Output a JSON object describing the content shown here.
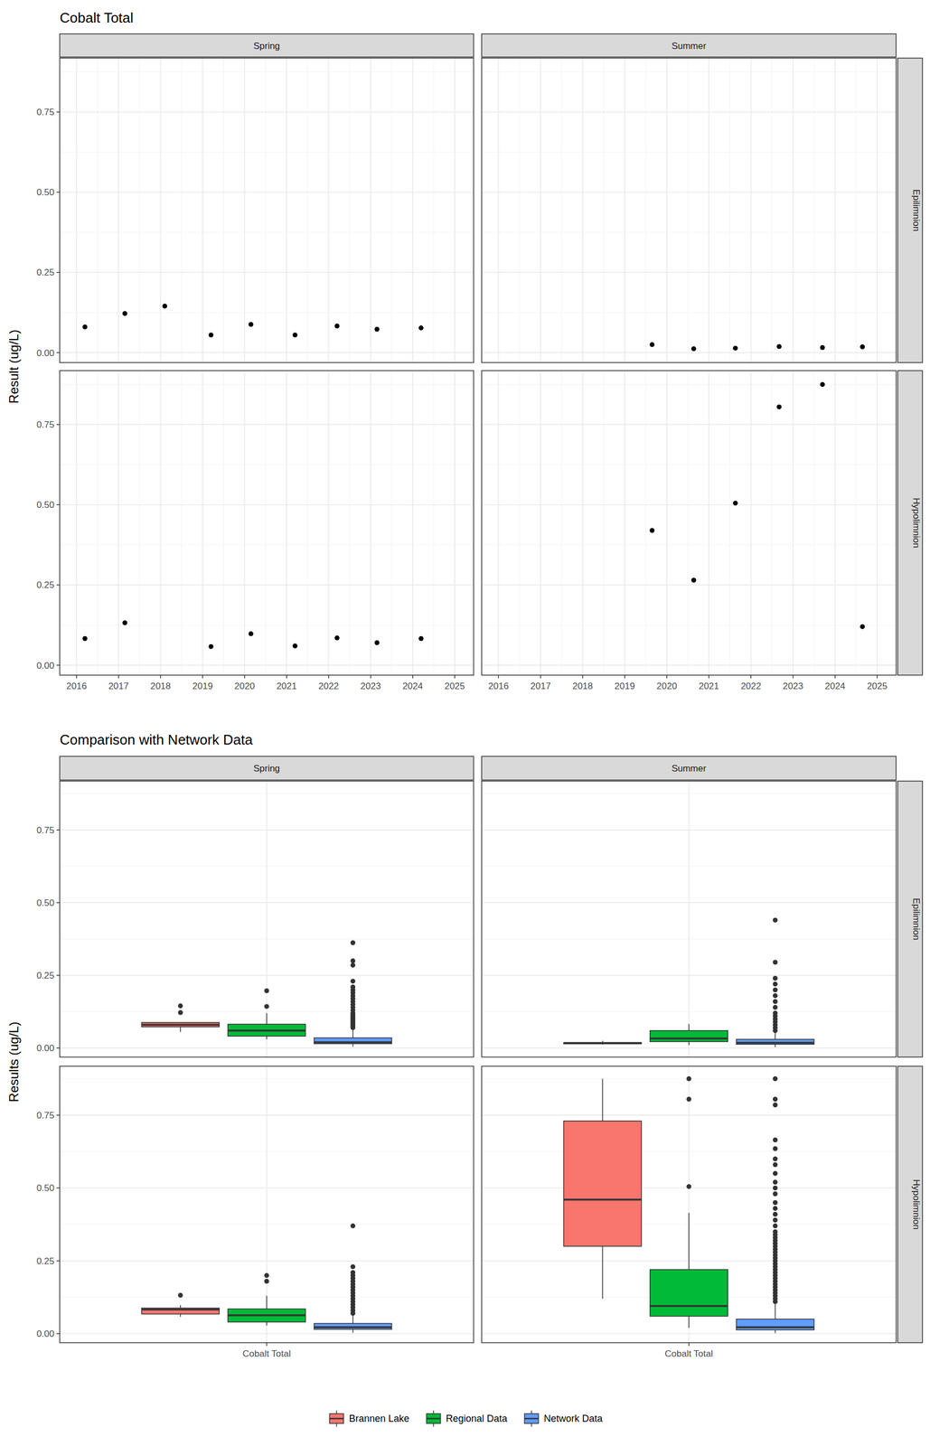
{
  "chart_data": [
    {
      "type": "scatter",
      "title": "Cobalt Total",
      "y_label": "Result (ug/L)",
      "grid": true,
      "columns": [
        "Spring",
        "Summer"
      ],
      "xlim": [
        2015.6,
        2025.45
      ],
      "xticks": [
        2016,
        2017,
        2018,
        2019,
        2020,
        2021,
        2022,
        2023,
        2024,
        2025
      ],
      "ylim": [
        -0.031,
        0.918
      ],
      "yticks": [
        {
          "value": 0,
          "label": "0.00"
        },
        0.25,
        {
          "value": 0.5,
          "label": "0.50"
        },
        0.75
      ],
      "rows": [
        {
          "label": "Epilimnion",
          "panels": [
            {
              "x": [
                2016.2,
                2017.15,
                2018.1,
                2019.2,
                2020.15,
                2021.2,
                2022.2,
                2023.15,
                2024.2
              ],
              "values": [
                0.08,
                0.122,
                0.145,
                0.055,
                0.088,
                0.055,
                0.083,
                0.073,
                0.077
              ]
            },
            {
              "x": [
                2019.65,
                2020.64,
                2021.63,
                2022.67,
                2023.7,
                2024.65
              ],
              "values": [
                0.025,
                0.012,
                0.014,
                0.019,
                0.016,
                0.018
              ]
            }
          ]
        },
        {
          "label": "Hypolimnion",
          "panels": [
            {
              "x": [
                2016.2,
                2017.15,
                2019.2,
                2020.15,
                2021.2,
                2022.2,
                2023.15,
                2024.2
              ],
              "values": [
                0.083,
                0.132,
                0.058,
                0.098,
                0.06,
                0.085,
                0.07,
                0.083
              ]
            },
            {
              "x": [
                2019.65,
                2020.64,
                2021.63,
                2022.67,
                2023.7,
                2024.65
              ],
              "values": [
                0.42,
                0.265,
                0.505,
                0.805,
                0.875,
                0.12
              ]
            }
          ]
        }
      ]
    },
    {
      "type": "box",
      "title": "Comparison with Network Data",
      "y_label": "Results (ug/L)",
      "grid": true,
      "legend": "bottom",
      "columns": [
        "Spring",
        "Summer"
      ],
      "categories": [
        "Cobalt Total"
      ],
      "ylim": [
        -0.031,
        0.918
      ],
      "yticks": [
        {
          "value": 0,
          "label": "0.00"
        },
        0.25,
        {
          "value": 0.5,
          "label": "0.50"
        },
        0.75
      ],
      "series": [
        {
          "name": "Brannen Lake",
          "color": "#F8766D"
        },
        {
          "name": "Regional Data",
          "color": "#00BA38"
        },
        {
          "name": "Network Data",
          "color": "#619CFF"
        }
      ],
      "rows": [
        {
          "label": "Epilimnion",
          "panels": [
            {
              "boxes": [
                {
                  "min": 0.055,
                  "q1": 0.073,
                  "median": 0.08,
                  "q3": 0.088,
                  "max": 0.088,
                  "outliers": [
                    0.122,
                    0.145
                  ]
                },
                {
                  "min": 0.03,
                  "q1": 0.041,
                  "median": 0.06,
                  "q3": 0.082,
                  "max": 0.12,
                  "outliers": [
                    0.143,
                    0.197
                  ]
                },
                {
                  "min": 0.005,
                  "q1": 0.015,
                  "median": 0.02,
                  "q3": 0.035,
                  "max": 0.065,
                  "outliers": [
                    0.07,
                    0.075,
                    0.08,
                    0.085,
                    0.09,
                    0.095,
                    0.1,
                    0.105,
                    0.11,
                    0.115,
                    0.12,
                    0.13,
                    0.14,
                    0.15,
                    0.16,
                    0.17,
                    0.18,
                    0.19,
                    0.2,
                    0.21,
                    0.23,
                    0.285,
                    0.3,
                    0.362
                  ]
                }
              ]
            },
            {
              "boxes": [
                {
                  "min": 0.012,
                  "q1": 0.0145,
                  "median": 0.017,
                  "q3": 0.0187,
                  "max": 0.025,
                  "outliers": []
                },
                {
                  "min": 0.01,
                  "q1": 0.022,
                  "median": 0.033,
                  "q3": 0.06,
                  "max": 0.083,
                  "outliers": []
                },
                {
                  "min": 0.003,
                  "q1": 0.013,
                  "median": 0.018,
                  "q3": 0.03,
                  "max": 0.055,
                  "outliers": [
                    0.06,
                    0.07,
                    0.08,
                    0.09,
                    0.1,
                    0.11,
                    0.12,
                    0.14,
                    0.16,
                    0.18,
                    0.2,
                    0.22,
                    0.24,
                    0.295,
                    0.44
                  ]
                }
              ]
            }
          ]
        },
        {
          "label": "Hypolimnion",
          "panels": [
            {
              "boxes": [
                {
                  "min": 0.058,
                  "q1": 0.0675,
                  "median": 0.083,
                  "q3": 0.088,
                  "max": 0.098,
                  "outliers": [
                    0.132
                  ]
                },
                {
                  "min": 0.028,
                  "q1": 0.04,
                  "median": 0.063,
                  "q3": 0.085,
                  "max": 0.13,
                  "outliers": [
                    0.18,
                    0.2
                  ]
                },
                {
                  "min": 0.003,
                  "q1": 0.015,
                  "median": 0.022,
                  "q3": 0.035,
                  "max": 0.065,
                  "outliers": [
                    0.07,
                    0.08,
                    0.09,
                    0.1,
                    0.11,
                    0.12,
                    0.13,
                    0.14,
                    0.15,
                    0.16,
                    0.17,
                    0.18,
                    0.19,
                    0.2,
                    0.21,
                    0.23,
                    0.37
                  ]
                }
              ]
            },
            {
              "boxes": [
                {
                  "min": 0.12,
                  "q1": 0.3,
                  "median": 0.46,
                  "q3": 0.73,
                  "max": 0.875,
                  "outliers": []
                },
                {
                  "min": 0.02,
                  "q1": 0.06,
                  "median": 0.095,
                  "q3": 0.22,
                  "max": 0.415,
                  "outliers": [
                    0.505,
                    0.805,
                    0.875
                  ]
                },
                {
                  "min": 0.002,
                  "q1": 0.013,
                  "median": 0.022,
                  "q3": 0.05,
                  "max": 0.105,
                  "outliers": [
                    0.11,
                    0.12,
                    0.13,
                    0.14,
                    0.15,
                    0.16,
                    0.17,
                    0.18,
                    0.19,
                    0.2,
                    0.21,
                    0.22,
                    0.23,
                    0.24,
                    0.25,
                    0.26,
                    0.27,
                    0.28,
                    0.29,
                    0.3,
                    0.31,
                    0.32,
                    0.33,
                    0.34,
                    0.35,
                    0.37,
                    0.39,
                    0.41,
                    0.43,
                    0.45,
                    0.48,
                    0.5,
                    0.52,
                    0.55,
                    0.58,
                    0.6,
                    0.635,
                    0.665,
                    0.785,
                    0.805,
                    0.875
                  ]
                }
              ]
            }
          ]
        }
      ]
    }
  ]
}
